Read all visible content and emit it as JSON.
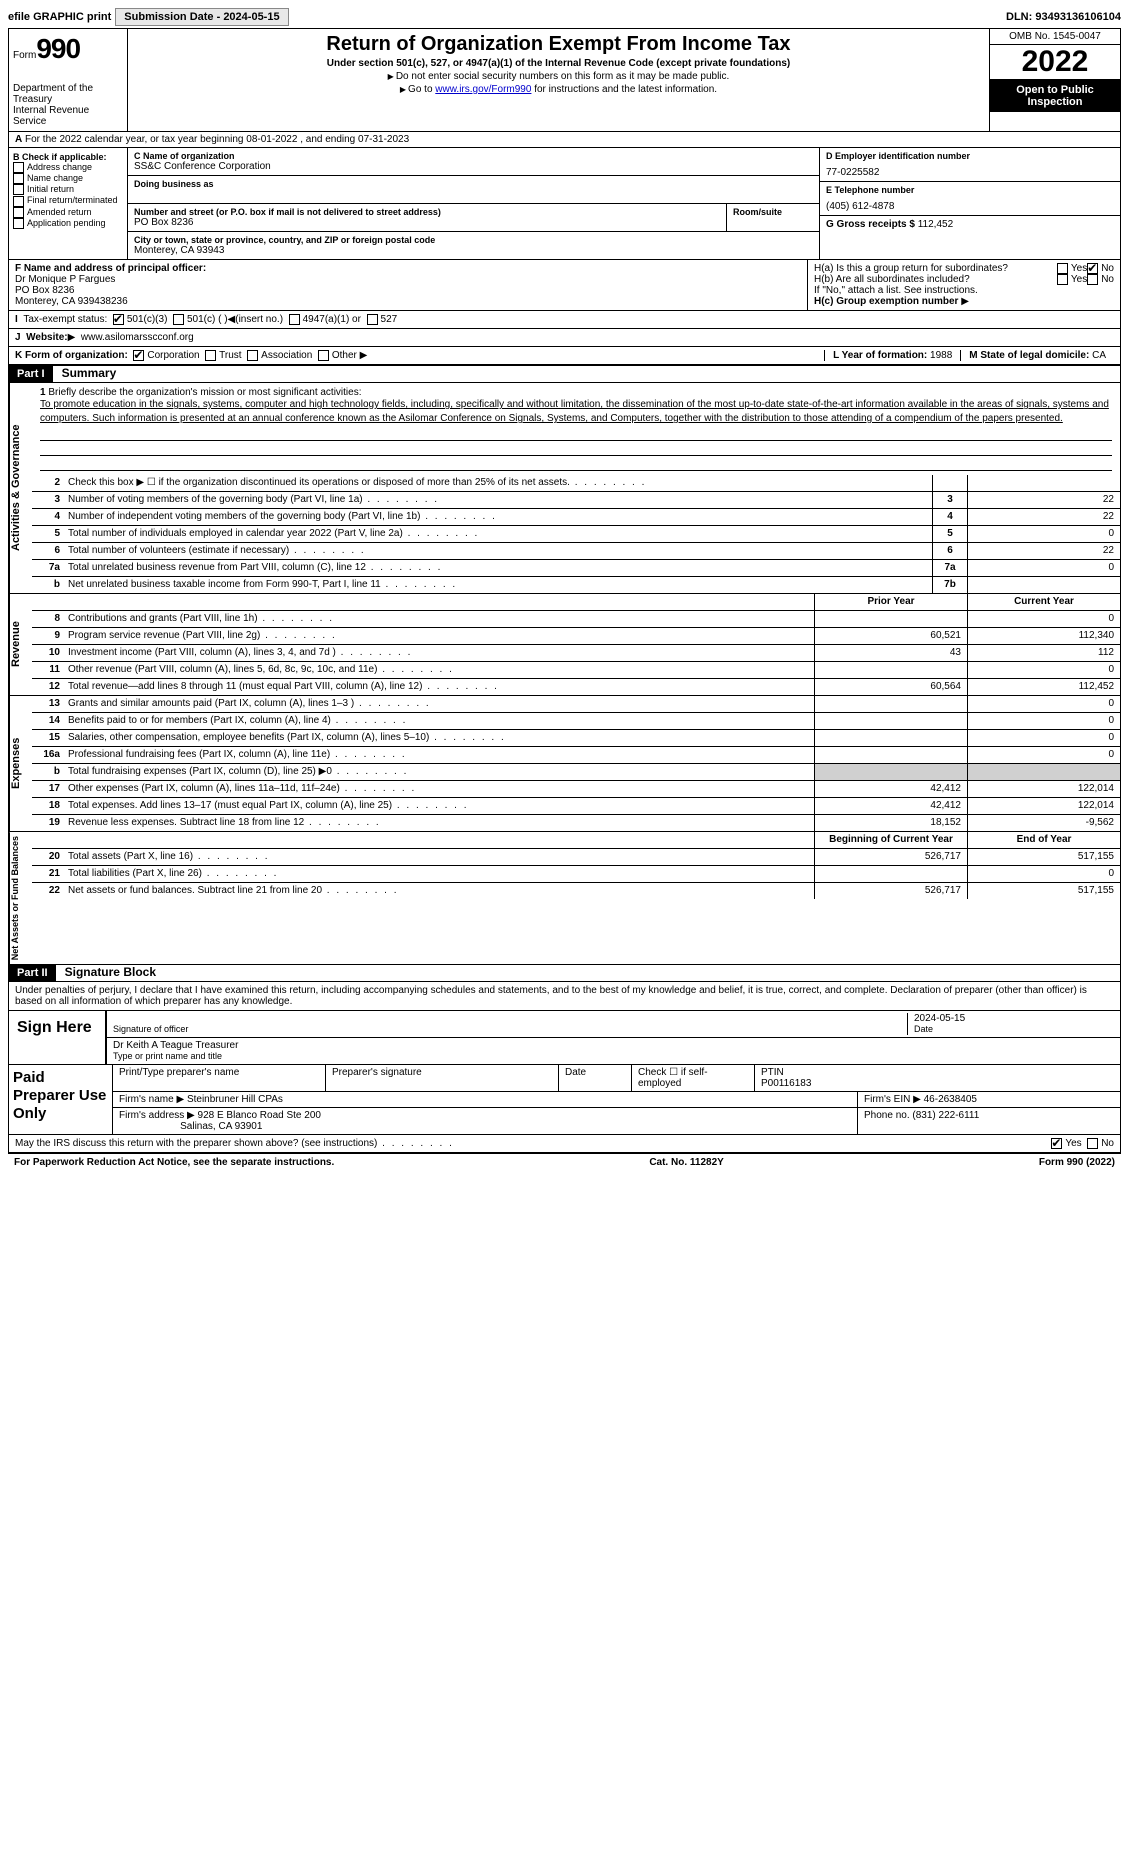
{
  "topbar": {
    "efile": "efile GRAPHIC print",
    "submission": "Submission Date - 2024-05-15",
    "dln": "DLN: 93493136106104"
  },
  "header": {
    "form_word": "Form",
    "form_num": "990",
    "dept": "Department of the Treasury",
    "irs": "Internal Revenue Service",
    "title": "Return of Organization Exempt From Income Tax",
    "subtitle": "Under section 501(c), 527, or 4947(a)(1) of the Internal Revenue Code (except private foundations)",
    "note1": "Do not enter social security numbers on this form as it may be made public.",
    "note2_pre": "Go to ",
    "note2_link": "www.irs.gov/Form990",
    "note2_post": " for instructions and the latest information.",
    "omb": "OMB No. 1545-0047",
    "year": "2022",
    "open": "Open to Public Inspection"
  },
  "rowA": "For the 2022 calendar year, or tax year beginning 08-01-2022    , and ending 07-31-2023",
  "boxB": {
    "title": "B Check if applicable:",
    "items": [
      "Address change",
      "Name change",
      "Initial return",
      "Final return/terminated",
      "Amended return",
      "Application pending"
    ]
  },
  "boxC": {
    "name_label": "C Name of organization",
    "name": "SS&C Conference Corporation",
    "dba_label": "Doing business as",
    "addr_label": "Number and street (or P.O. box if mail is not delivered to street address)",
    "room_label": "Room/suite",
    "addr": "PO Box 8236",
    "city_label": "City or town, state or province, country, and ZIP or foreign postal code",
    "city": "Monterey, CA  93943"
  },
  "boxD": {
    "label": "D Employer identification number",
    "val": "77-0225582"
  },
  "boxE": {
    "label": "E Telephone number",
    "val": "(405) 612-4878"
  },
  "boxG": {
    "label": "G Gross receipts $",
    "val": "112,452"
  },
  "boxF": {
    "label": "F  Name and address of principal officer:",
    "line1": "Dr Monique P Fargues",
    "line2": "PO Box 8236",
    "line3": "Monterey, CA  939438236"
  },
  "boxH": {
    "a": "H(a)  Is this a group return for subordinates?",
    "b": "H(b)  Are all subordinates included?",
    "b_note": "If \"No,\" attach a list. See instructions.",
    "c": "H(c)  Group exemption number",
    "yes": "Yes",
    "no": "No"
  },
  "rowI": {
    "label": "Tax-exempt status:",
    "o1": "501(c)(3)",
    "o2": "501(c) (  )",
    "o2b": "(insert no.)",
    "o3": "4947(a)(1) or",
    "o4": "527"
  },
  "rowJ": {
    "label": "Website:",
    "val": "www.asilomarsscconf.org"
  },
  "rowK": {
    "label": "K Form of organization:",
    "o1": "Corporation",
    "o2": "Trust",
    "o3": "Association",
    "o4": "Other"
  },
  "rowL": {
    "label": "L Year of formation:",
    "val": "1988"
  },
  "rowM": {
    "label": "M State of legal domicile:",
    "val": "CA"
  },
  "part1": {
    "tag": "Part I",
    "title": "Summary"
  },
  "mission": {
    "num": "1",
    "label": "Briefly describe the organization's mission or most significant activities:",
    "text": "To promote education in the signals, systems, computer and high technology fields, including, specifically and without limitation, the dissemination of the most up-to-date state-of-the-art information available in the areas of signals, systems and computers. Such information is presented at an annual conference known as the Asilomar Conference on Signals, Systems, and Computers, together with the distribution to those attending of a compendium of the papers presented."
  },
  "tabs": {
    "ag": "Activities & Governance",
    "rev": "Revenue",
    "exp": "Expenses",
    "na": "Net Assets or Fund Balances"
  },
  "lines_ag": [
    {
      "n": "2",
      "t": "Check this box ▶ ☐  if the organization discontinued its operations or disposed of more than 25% of its net assets.",
      "box": "",
      "v": ""
    },
    {
      "n": "3",
      "t": "Number of voting members of the governing body (Part VI, line 1a)",
      "box": "3",
      "v": "22"
    },
    {
      "n": "4",
      "t": "Number of independent voting members of the governing body (Part VI, line 1b)",
      "box": "4",
      "v": "22"
    },
    {
      "n": "5",
      "t": "Total number of individuals employed in calendar year 2022 (Part V, line 2a)",
      "box": "5",
      "v": "0"
    },
    {
      "n": "6",
      "t": "Total number of volunteers (estimate if necessary)",
      "box": "6",
      "v": "22"
    },
    {
      "n": "7a",
      "t": "Total unrelated business revenue from Part VIII, column (C), line 12",
      "box": "7a",
      "v": "0"
    },
    {
      "n": "b",
      "t": "Net unrelated business taxable income from Form 990-T, Part I, line 11",
      "box": "7b",
      "v": ""
    }
  ],
  "col_headers": {
    "prior": "Prior Year",
    "current": "Current Year",
    "boy": "Beginning of Current Year",
    "eoy": "End of Year"
  },
  "lines_rev": [
    {
      "n": "8",
      "t": "Contributions and grants (Part VIII, line 1h)",
      "p": "",
      "c": "0"
    },
    {
      "n": "9",
      "t": "Program service revenue (Part VIII, line 2g)",
      "p": "60,521",
      "c": "112,340"
    },
    {
      "n": "10",
      "t": "Investment income (Part VIII, column (A), lines 3, 4, and 7d )",
      "p": "43",
      "c": "112"
    },
    {
      "n": "11",
      "t": "Other revenue (Part VIII, column (A), lines 5, 6d, 8c, 9c, 10c, and 11e)",
      "p": "",
      "c": "0"
    },
    {
      "n": "12",
      "t": "Total revenue—add lines 8 through 11 (must equal Part VIII, column (A), line 12)",
      "p": "60,564",
      "c": "112,452"
    }
  ],
  "lines_exp": [
    {
      "n": "13",
      "t": "Grants and similar amounts paid (Part IX, column (A), lines 1–3 )",
      "p": "",
      "c": "0"
    },
    {
      "n": "14",
      "t": "Benefits paid to or for members (Part IX, column (A), line 4)",
      "p": "",
      "c": "0"
    },
    {
      "n": "15",
      "t": "Salaries, other compensation, employee benefits (Part IX, column (A), lines 5–10)",
      "p": "",
      "c": "0"
    },
    {
      "n": "16a",
      "t": "Professional fundraising fees (Part IX, column (A), line 11e)",
      "p": "",
      "c": "0"
    },
    {
      "n": "b",
      "t": "Total fundraising expenses (Part IX, column (D), line 25) ▶0",
      "p": "shade",
      "c": "shade"
    },
    {
      "n": "17",
      "t": "Other expenses (Part IX, column (A), lines 11a–11d, 11f–24e)",
      "p": "42,412",
      "c": "122,014"
    },
    {
      "n": "18",
      "t": "Total expenses. Add lines 13–17 (must equal Part IX, column (A), line 25)",
      "p": "42,412",
      "c": "122,014"
    },
    {
      "n": "19",
      "t": "Revenue less expenses. Subtract line 18 from line 12",
      "p": "18,152",
      "c": "-9,562"
    }
  ],
  "lines_na": [
    {
      "n": "20",
      "t": "Total assets (Part X, line 16)",
      "p": "526,717",
      "c": "517,155"
    },
    {
      "n": "21",
      "t": "Total liabilities (Part X, line 26)",
      "p": "",
      "c": "0"
    },
    {
      "n": "22",
      "t": "Net assets or fund balances. Subtract line 21 from line 20",
      "p": "526,717",
      "c": "517,155"
    }
  ],
  "part2": {
    "tag": "Part II",
    "title": "Signature Block"
  },
  "sig": {
    "perjury": "Under penalties of perjury, I declare that I have examined this return, including accompanying schedules and statements, and to the best of my knowledge and belief, it is true, correct, and complete. Declaration of preparer (other than officer) is based on all information of which preparer has any knowledge.",
    "sign_here": "Sign Here",
    "sig_officer": "Signature of officer",
    "date": "Date",
    "date_val": "2024-05-15",
    "name_title": "Dr Keith A Teague  Treasurer",
    "type_name": "Type or print name and title"
  },
  "prep": {
    "label": "Paid Preparer Use Only",
    "h1": "Print/Type preparer's name",
    "h2": "Preparer's signature",
    "h3": "Date",
    "h4": "Check ☐ if self-employed",
    "h5": "PTIN",
    "ptin": "P00116183",
    "firm_label": "Firm's name",
    "firm": "Steinbruner Hill CPAs",
    "ein_label": "Firm's EIN",
    "ein": "46-2638405",
    "addr_label": "Firm's address",
    "addr1": "928 E Blanco Road Ste 200",
    "addr2": "Salinas, CA  93901",
    "phone_label": "Phone no.",
    "phone": "(831) 222-6111"
  },
  "discuss": {
    "q": "May the IRS discuss this return with the preparer shown above? (see instructions)",
    "yes": "Yes",
    "no": "No"
  },
  "footer": {
    "left": "For Paperwork Reduction Act Notice, see the separate instructions.",
    "mid": "Cat. No. 11282Y",
    "right": "Form 990 (2022)"
  }
}
